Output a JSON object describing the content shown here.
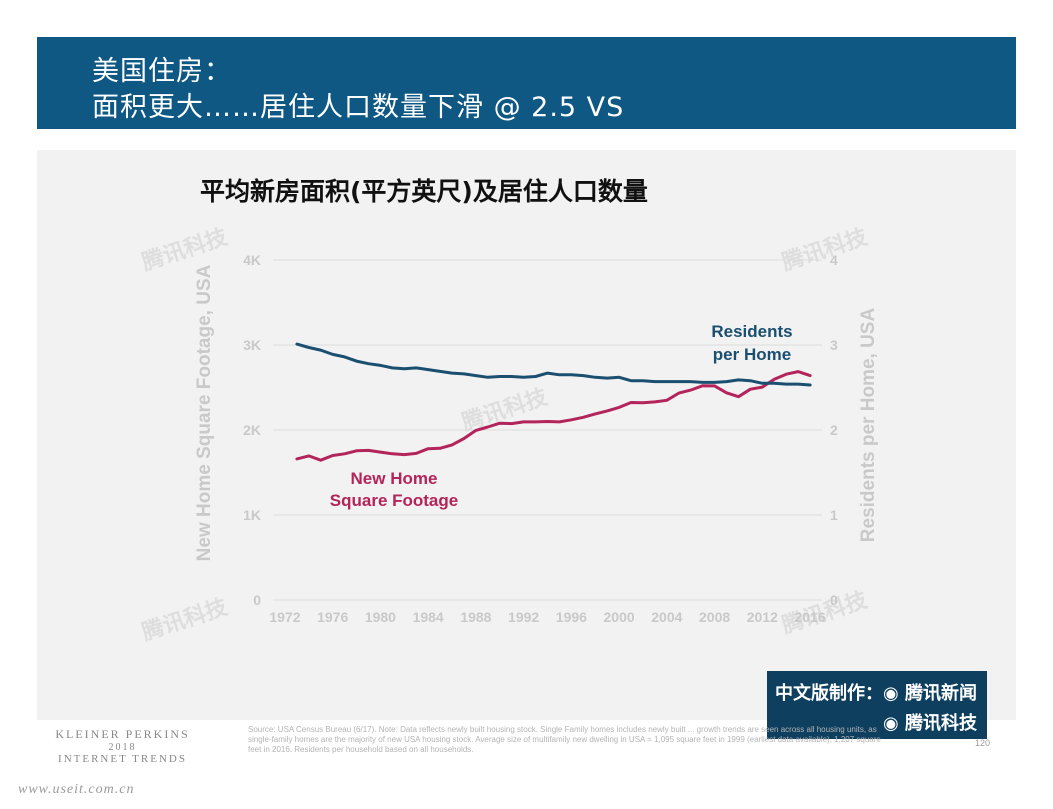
{
  "header": {
    "line1": "美国住房：",
    "line2": "面积更大……居住人口数量下滑 @ 2.5 VS"
  },
  "chart_title": "平均新房面积(平方英尺)及居住人口数量",
  "chart_data": {
    "type": "line",
    "title": "平均新房面积(平方英尺)及居住人口数量",
    "xlabel": "",
    "ylabel_left": "New Home Square Footage, USA",
    "ylabel_right": "Residents per Home, USA",
    "xlim": [
      1971,
      2017
    ],
    "ylim_left": [
      0,
      4000
    ],
    "ylim_right": [
      0,
      4
    ],
    "x_ticks": [
      "1972",
      "1976",
      "1980",
      "1984",
      "1988",
      "1992",
      "1996",
      "2000",
      "2004",
      "2008",
      "2012",
      "2016"
    ],
    "y_ticks_left": [
      "0",
      "1K",
      "2K",
      "3K",
      "4K"
    ],
    "y_ticks_right": [
      "0",
      "1",
      "2",
      "3",
      "4"
    ],
    "grid": true,
    "series": [
      {
        "name": "New Home Square Footage",
        "axis": "left",
        "color": "#b3245a",
        "x": [
          1973,
          1974,
          1975,
          1976,
          1977,
          1978,
          1979,
          1980,
          1981,
          1982,
          1983,
          1984,
          1985,
          1986,
          1987,
          1988,
          1989,
          1990,
          1991,
          1992,
          1993,
          1994,
          1995,
          1996,
          1997,
          1998,
          1999,
          2000,
          2001,
          2002,
          2003,
          2004,
          2005,
          2006,
          2007,
          2008,
          2009,
          2010,
          2011,
          2012,
          2013,
          2014,
          2015,
          2016
        ],
        "values": [
          1660,
          1695,
          1645,
          1700,
          1720,
          1755,
          1760,
          1740,
          1720,
          1710,
          1725,
          1780,
          1785,
          1825,
          1900,
          1995,
          2035,
          2080,
          2075,
          2095,
          2095,
          2100,
          2095,
          2120,
          2150,
          2190,
          2225,
          2266,
          2324,
          2320,
          2330,
          2349,
          2434,
          2469,
          2521,
          2519,
          2438,
          2392,
          2480,
          2505,
          2598,
          2657,
          2687,
          2640
        ]
      },
      {
        "name": "Residents per Home",
        "axis": "right",
        "color": "#1a4f70",
        "x": [
          1973,
          1974,
          1975,
          1976,
          1977,
          1978,
          1979,
          1980,
          1981,
          1982,
          1983,
          1984,
          1985,
          1986,
          1987,
          1988,
          1989,
          1990,
          1991,
          1992,
          1993,
          1994,
          1995,
          1996,
          1997,
          1998,
          1999,
          2000,
          2001,
          2002,
          2003,
          2004,
          2005,
          2006,
          2007,
          2008,
          2009,
          2010,
          2011,
          2012,
          2013,
          2014,
          2015,
          2016
        ],
        "values": [
          3.01,
          2.97,
          2.94,
          2.89,
          2.86,
          2.81,
          2.78,
          2.76,
          2.73,
          2.72,
          2.73,
          2.71,
          2.69,
          2.67,
          2.66,
          2.64,
          2.62,
          2.63,
          2.63,
          2.62,
          2.63,
          2.67,
          2.65,
          2.65,
          2.64,
          2.62,
          2.61,
          2.62,
          2.58,
          2.58,
          2.57,
          2.57,
          2.57,
          2.57,
          2.56,
          2.56,
          2.57,
          2.59,
          2.58,
          2.55,
          2.55,
          2.54,
          2.54,
          2.53
        ]
      }
    ]
  },
  "series_labels": {
    "sqft_line1": "New Home",
    "sqft_line2": "Square Footage",
    "residents_line1": "Residents",
    "residents_line2": "per Home"
  },
  "watermark_text": "腾讯科技",
  "badge": {
    "line1": "中文版制作：◉ 腾讯新闻",
    "line2": "◉ 腾讯科技"
  },
  "footer": {
    "logo_line1": "KLEINER PERKINS",
    "logo_line2": "2018",
    "logo_line3": "INTERNET TRENDS",
    "source": "Source: USA Census Bureau (6/17). Note: Data reflects newly built housing stock. Single Family homes includes newly built ... growth trends are seen across all housing units, as single-family homes are the majority of new USA housing stock. Average size of multifamily new dwelling in USA = 1,095 square feet in 1999 (earliest data available), 1,207 square feet in 2016. Residents per household based on all households.",
    "page_number": "120",
    "site_mark": "www.useit.com.cn"
  },
  "colors": {
    "header_bg": "#0e5883",
    "panel_bg": "#f2f2f2",
    "sqft_line": "#b3245a",
    "residents_line": "#1a4f70",
    "badge_bg": "#0e3f5f"
  }
}
